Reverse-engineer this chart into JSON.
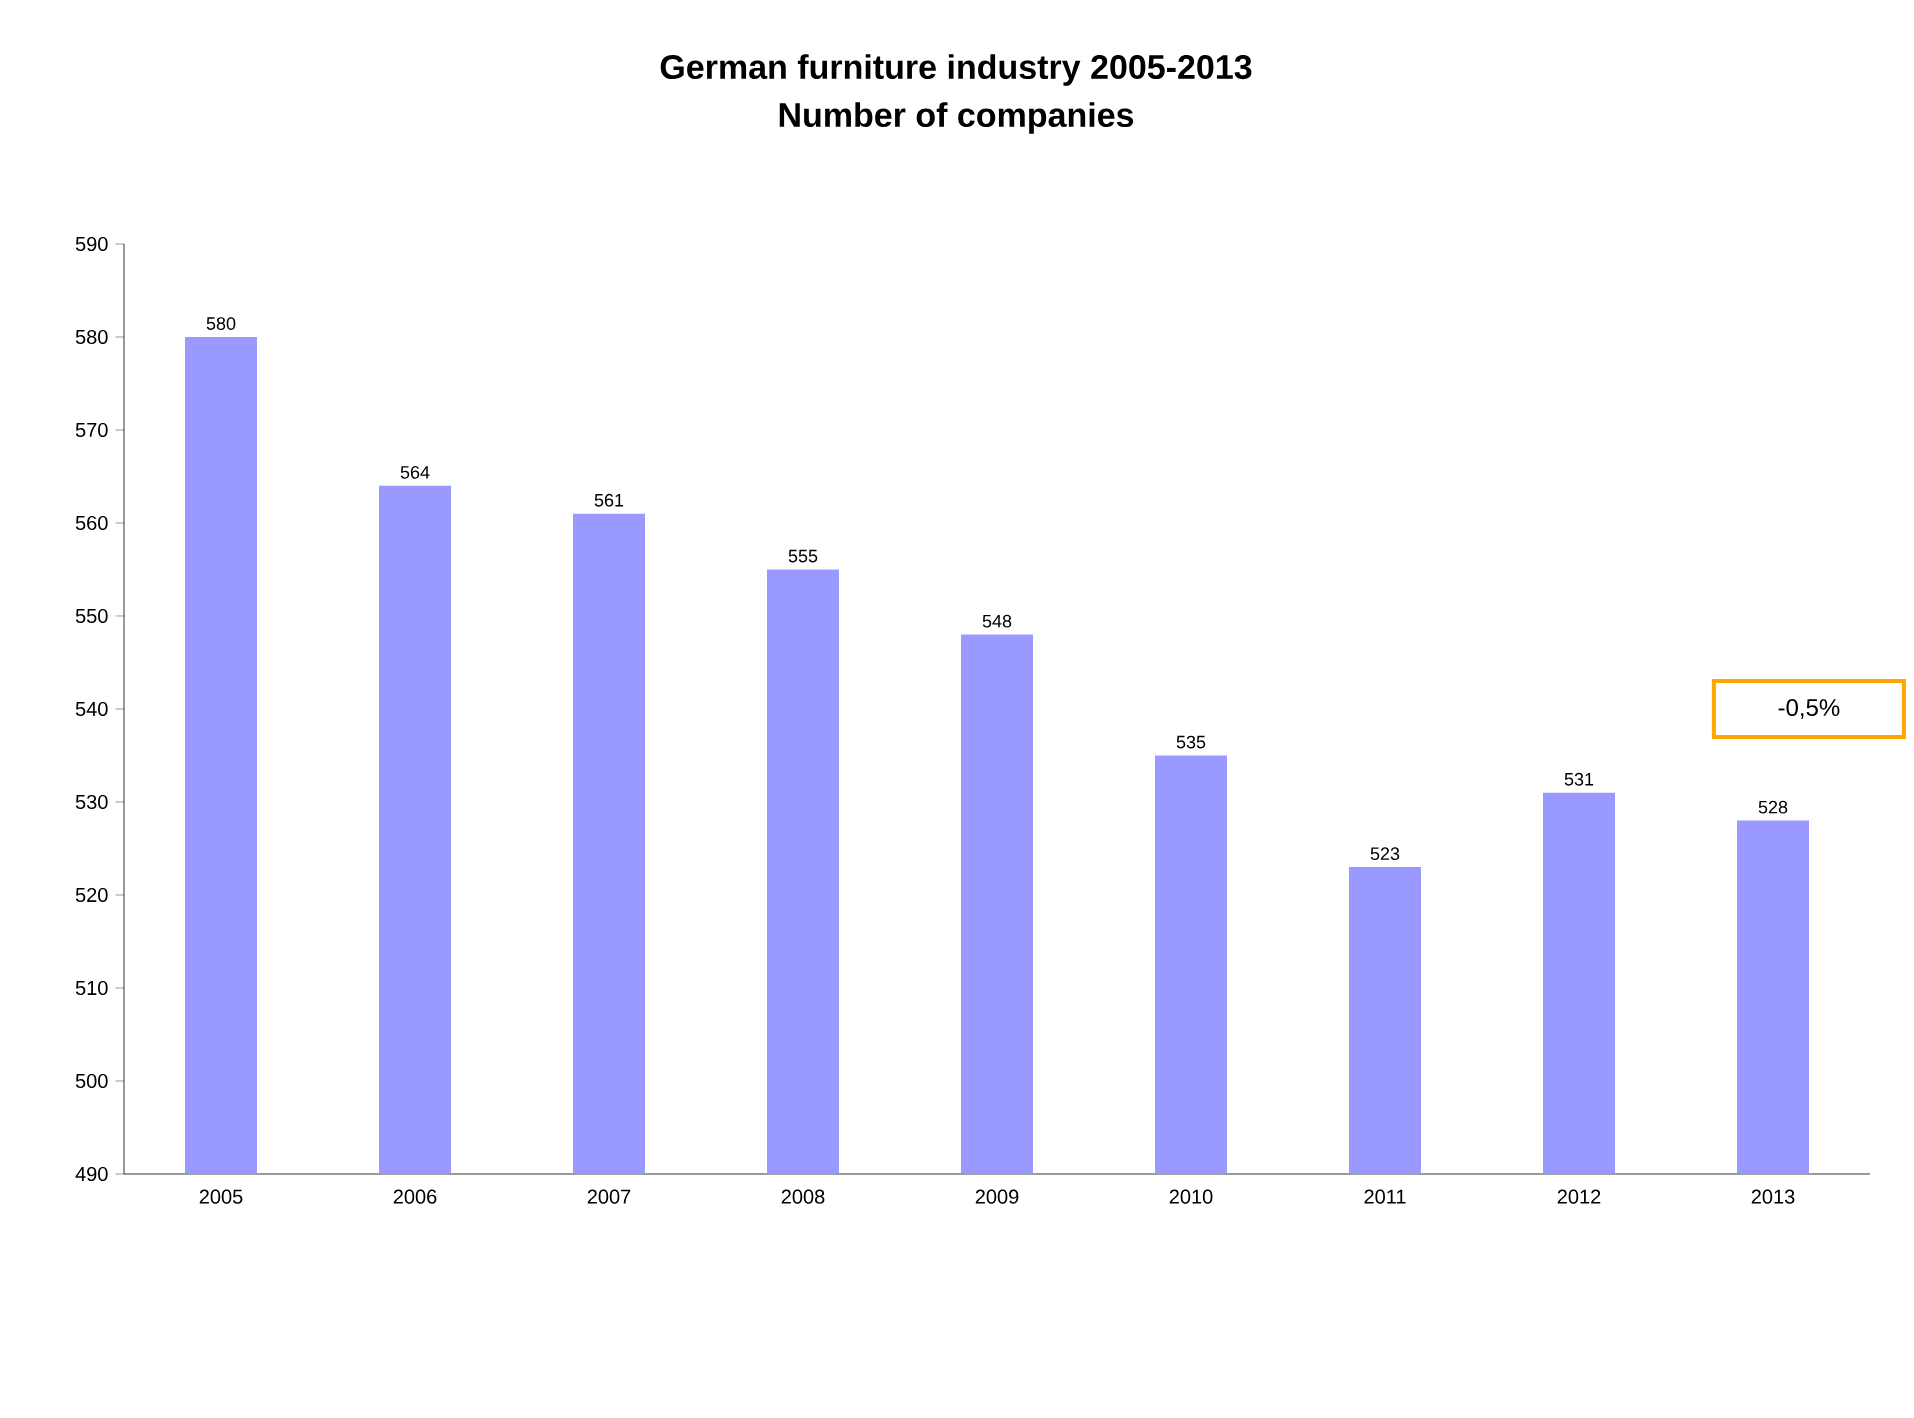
{
  "chart_data": {
    "type": "bar",
    "title": "German furniture industry 2005-2013",
    "subtitle": "Number of companies",
    "categories": [
      "2005",
      "2006",
      "2007",
      "2008",
      "2009",
      "2010",
      "2011",
      "2012",
      "2013"
    ],
    "values": [
      580,
      564,
      561,
      555,
      548,
      535,
      523,
      531,
      528
    ],
    "color": "#9999ff",
    "ylim": [
      490,
      590
    ],
    "yticks": [
      490,
      500,
      510,
      520,
      530,
      540,
      550,
      560,
      570,
      580,
      590
    ],
    "data_labels": true,
    "annotations": [
      "-0,5%"
    ]
  }
}
